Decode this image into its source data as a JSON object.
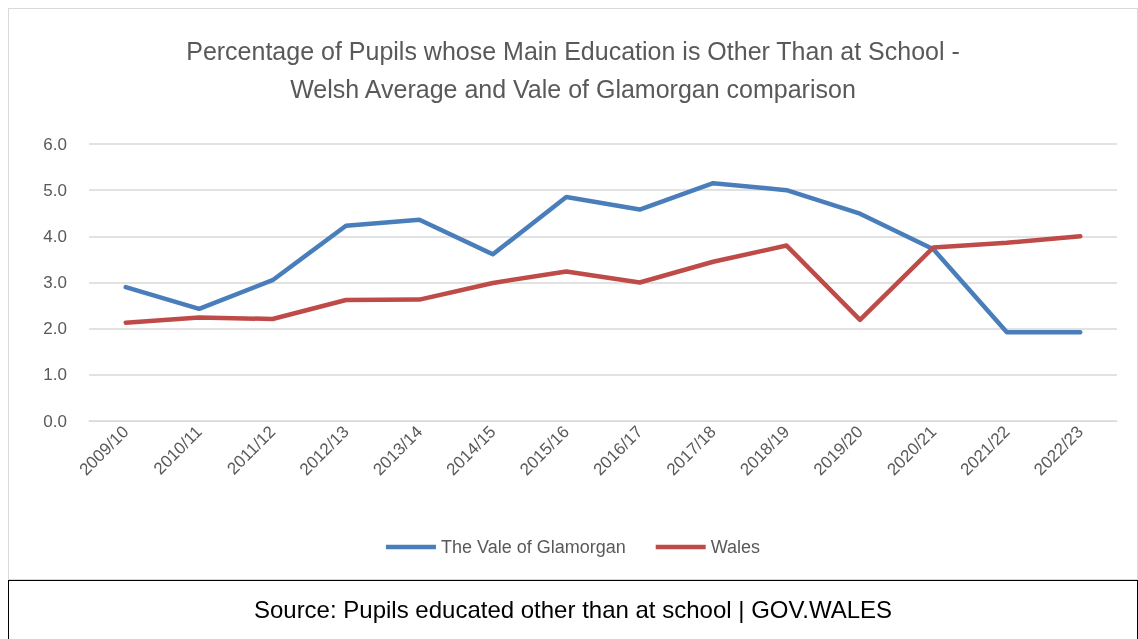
{
  "chart_data": {
    "type": "line",
    "title": "Percentage of Pupils whose Main Education is Other Than at School -\nWelsh Average and Vale of Glamorgan comparison",
    "categories": [
      "2009/10",
      "2010/11",
      "2011/12",
      "2012/13",
      "2013/14",
      "2014/15",
      "2015/16",
      "2016/17",
      "2017/18",
      "2018/19",
      "2019/20",
      "2020/21",
      "2021/22",
      "2022/23"
    ],
    "series": [
      {
        "name": "The Vale of Glamorgan",
        "color": "#4a7ebb",
        "values": [
          2.9,
          2.43,
          3.05,
          4.23,
          4.36,
          3.61,
          4.85,
          4.58,
          5.15,
          5.0,
          4.49,
          3.72,
          1.92,
          1.92
        ]
      },
      {
        "name": "Wales",
        "color": "#be4b48",
        "values": [
          2.13,
          2.24,
          2.21,
          2.62,
          2.63,
          2.99,
          3.24,
          3.0,
          3.45,
          3.8,
          2.19,
          3.76,
          3.86,
          4.0
        ]
      }
    ],
    "ylim": [
      0,
      6
    ],
    "yticks": [
      {
        "value": 0,
        "label": "0.0"
      },
      {
        "value": 1,
        "label": "1.0"
      },
      {
        "value": 2,
        "label": "2.0"
      },
      {
        "value": 3,
        "label": "3.0"
      },
      {
        "value": 4,
        "label": "4.0"
      },
      {
        "value": 5,
        "label": "5.0"
      },
      {
        "value": 6,
        "label": "6.0"
      }
    ],
    "grid": "y",
    "legend": "bottom",
    "marker": "none",
    "line_style": "solid",
    "annotations": [
      "Source: Pupils educated other than at school | GOV.WALES"
    ]
  }
}
